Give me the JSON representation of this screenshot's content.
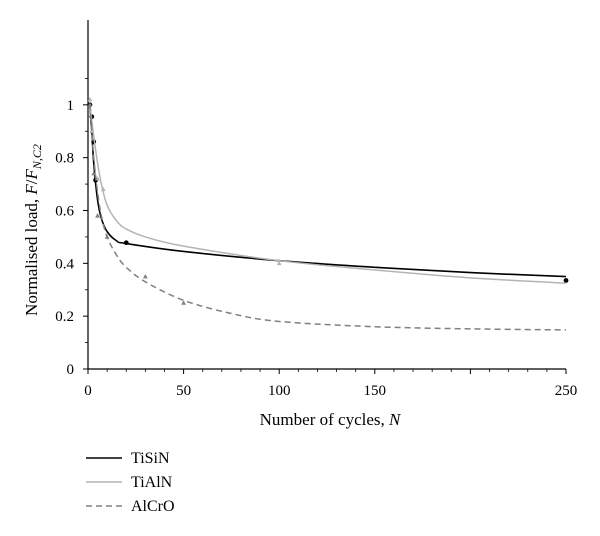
{
  "chart_data": {
    "type": "line",
    "title": "",
    "xlabel": "Number of cycles, ",
    "xlabel_var": "N",
    "ylabel_prefix": "Normalised load, ",
    "ylabel_F": "F",
    "ylabel_slash": "/",
    "ylabel_FN": "F",
    "ylabel_sub": "N,C2",
    "xlim": [
      0,
      250
    ],
    "ylim": [
      0,
      1.2
    ],
    "xticks": [
      0,
      50,
      100,
      150,
      200,
      250
    ],
    "xtick_labels": [
      "0",
      "50",
      "100",
      "150",
      "",
      "250"
    ],
    "yticks": [
      0,
      0.2,
      0.4,
      0.6,
      0.8,
      1.0
    ],
    "ytick_labels": [
      "0",
      "0.2",
      "0.4",
      "0.6",
      "0.8",
      "1"
    ],
    "grid": false,
    "legend_position": "bottom-left",
    "series": [
      {
        "name": "TiSiN",
        "color": "#000000",
        "dash": "none",
        "curve_x": [
          1,
          2,
          3,
          5,
          7,
          10,
          15,
          20,
          50,
          100,
          150,
          200,
          250
        ],
        "curve_y": [
          1.0,
          0.9,
          0.78,
          0.64,
          0.57,
          0.52,
          0.485,
          0.475,
          0.445,
          0.41,
          0.385,
          0.365,
          0.35
        ],
        "points_x": [
          1,
          2,
          3,
          4,
          20,
          250
        ],
        "points_y": [
          1.0,
          0.955,
          0.86,
          0.715,
          0.478,
          0.335
        ]
      },
      {
        "name": "TiAlN",
        "color": "#b4b4b4",
        "dash": "none",
        "curve_x": [
          1,
          2,
          3,
          5,
          7,
          10,
          15,
          20,
          30,
          50,
          100,
          150,
          200,
          250
        ],
        "curve_y": [
          1.0,
          0.94,
          0.88,
          0.78,
          0.7,
          0.62,
          0.56,
          0.53,
          0.5,
          0.465,
          0.41,
          0.375,
          0.345,
          0.325
        ],
        "points_x": [
          1,
          2,
          5,
          8,
          100
        ],
        "points_y": [
          1.02,
          0.9,
          0.72,
          0.68,
          0.4
        ]
      },
      {
        "name": "AlCrO",
        "color": "#808080",
        "dash": "6,4",
        "curve_x": [
          1,
          2,
          3,
          5,
          7,
          10,
          15,
          20,
          30,
          50,
          75,
          100,
          150,
          200,
          250
        ],
        "curve_y": [
          1.0,
          0.9,
          0.8,
          0.67,
          0.58,
          0.5,
          0.43,
          0.385,
          0.33,
          0.26,
          0.21,
          0.18,
          0.16,
          0.152,
          0.148
        ],
        "points_x": [
          1,
          3,
          5,
          10,
          30,
          50
        ],
        "points_y": [
          1.0,
          0.74,
          0.58,
          0.5,
          0.35,
          0.25
        ]
      }
    ]
  }
}
